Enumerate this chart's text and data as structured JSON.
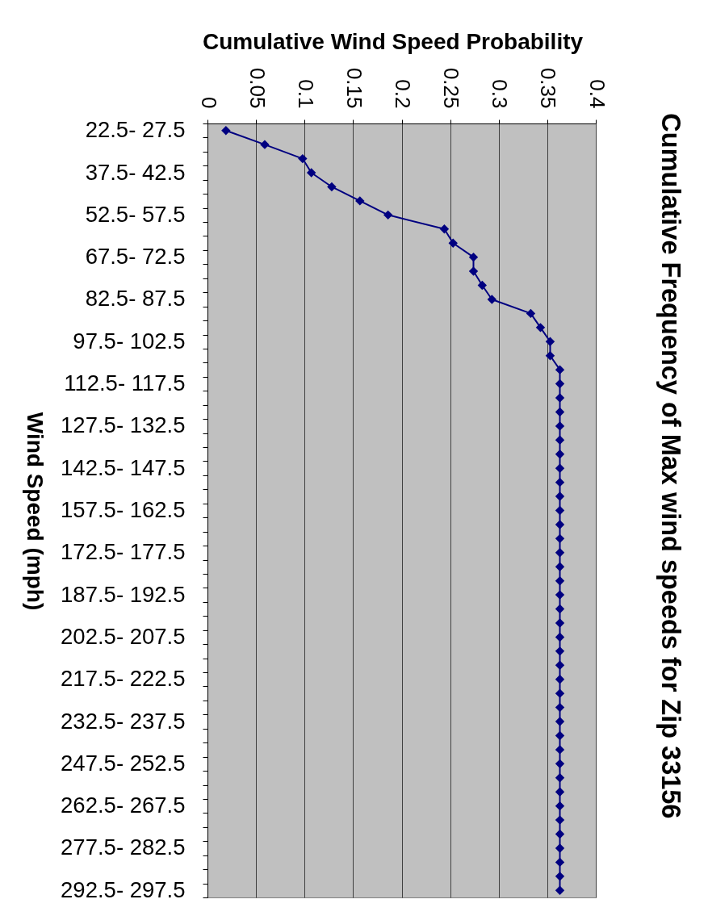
{
  "chart_data": {
    "type": "line",
    "orientation": "horizontal",
    "title": "Cumulative Frequency of Max wind speeds for Zip 33156",
    "xlabel": "Cumulative Wind Speed Probability",
    "ylabel": "Wind Speed (mph)",
    "categories": [
      "22.5- 27.5",
      null,
      null,
      "37.5- 42.5",
      null,
      null,
      "52.5- 57.5",
      null,
      null,
      "67.5- 72.5",
      null,
      null,
      "82.5- 87.5",
      null,
      null,
      "97.5- 102.5",
      null,
      null,
      "112.5- 117.5",
      null,
      null,
      "127.5- 132.5",
      null,
      null,
      "142.5- 147.5",
      null,
      null,
      "157.5- 162.5",
      null,
      null,
      "172.5- 177.5",
      null,
      null,
      "187.5- 192.5",
      null,
      null,
      "202.5- 207.5",
      null,
      null,
      "217.5- 222.5",
      null,
      null,
      "232.5- 237.5",
      null,
      null,
      "247.5- 252.5",
      null,
      null,
      "262.5- 267.5",
      null,
      null,
      "277.5- 282.5",
      null,
      null,
      "292.5- 297.5"
    ],
    "series": [
      {
        "color": "#000080",
        "values": [
          0.019,
          0.059,
          0.098,
          0.107,
          0.128,
          0.157,
          0.186,
          0.244,
          0.253,
          0.274,
          0.274,
          0.283,
          0.293,
          0.333,
          0.343,
          0.353,
          0.353,
          0.363,
          0.363,
          0.363,
          0.363,
          0.363,
          0.363,
          0.363,
          0.363,
          0.363,
          0.363,
          0.363,
          0.363,
          0.363,
          0.363,
          0.363,
          0.363,
          0.363,
          0.363,
          0.363,
          0.363,
          0.363,
          0.363,
          0.363,
          0.363,
          0.363,
          0.363,
          0.363,
          0.363,
          0.363,
          0.363,
          0.363,
          0.363,
          0.363,
          0.363,
          0.363,
          0.363,
          0.363,
          0.363
        ]
      }
    ],
    "xlim": [
      0,
      0.4
    ],
    "xticks": [
      0,
      0.05,
      0.1,
      0.15,
      0.2,
      0.25,
      0.3,
      0.35,
      0.4
    ],
    "grid": "x",
    "marker": "diamond",
    "line_style": "solid"
  }
}
